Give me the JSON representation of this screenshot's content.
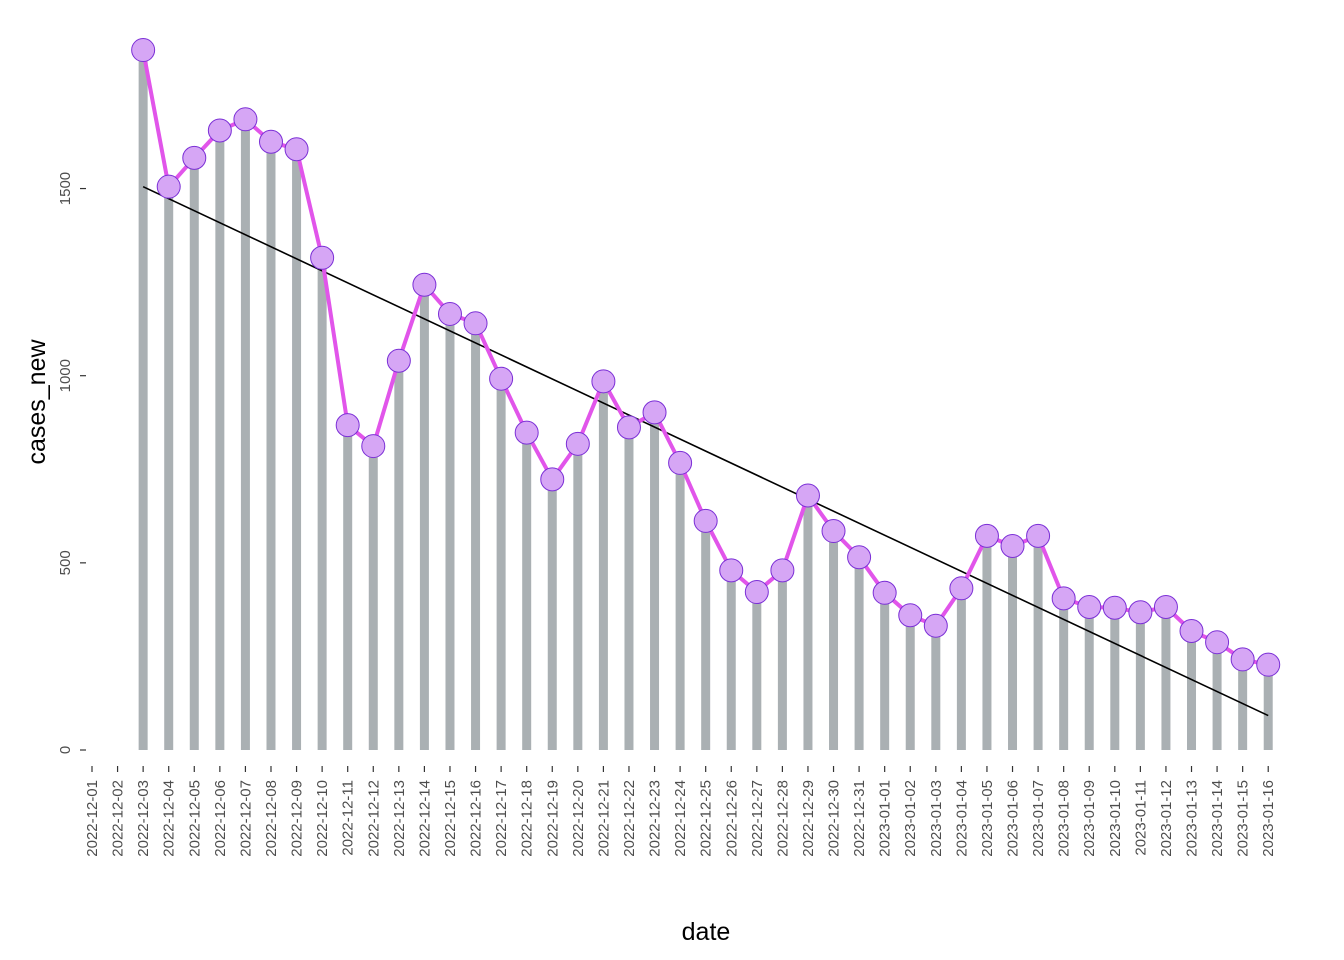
{
  "chart_data": {
    "type": "bar",
    "title": "",
    "xlabel": "date",
    "ylabel": "cases_new",
    "x_tick_labels": [
      "2022-12-01",
      "2022-12-02",
      "2022-12-03",
      "2022-12-04",
      "2022-12-05",
      "2022-12-06",
      "2022-12-07",
      "2022-12-08",
      "2022-12-09",
      "2022-12-10",
      "2022-12-11",
      "2022-12-12",
      "2022-12-13",
      "2022-12-14",
      "2022-12-15",
      "2022-12-16",
      "2022-12-17",
      "2022-12-18",
      "2022-12-19",
      "2022-12-20",
      "2022-12-21",
      "2022-12-22",
      "2022-12-23",
      "2022-12-24",
      "2022-12-25",
      "2022-12-26",
      "2022-12-27",
      "2022-12-28",
      "2022-12-29",
      "2022-12-30",
      "2022-12-31",
      "2023-01-01",
      "2023-01-02",
      "2023-01-03",
      "2023-01-04",
      "2023-01-05",
      "2023-01-06",
      "2023-01-07",
      "2023-01-08",
      "2023-01-09",
      "2023-01-10",
      "2023-01-11",
      "2023-01-12",
      "2023-01-13",
      "2023-01-14",
      "2023-01-15",
      "2023-01-16"
    ],
    "y_ticks": [
      0,
      500,
      1000,
      1500
    ],
    "y_tick_labels": [
      "0",
      "500",
      "1000",
      "1500"
    ],
    "xlim": [
      "2022-12-01",
      "2023-01-16"
    ],
    "ylim": [
      0,
      1870
    ],
    "grid": false,
    "series": [
      {
        "type": "bar+line",
        "x": [
          "2022-12-03",
          "2022-12-04",
          "2022-12-05",
          "2022-12-06",
          "2022-12-07",
          "2022-12-08",
          "2022-12-09",
          "2022-12-10",
          "2022-12-11",
          "2022-12-12",
          "2022-12-13",
          "2022-12-14",
          "2022-12-15",
          "2022-12-16",
          "2022-12-17",
          "2022-12-18",
          "2022-12-19",
          "2022-12-20",
          "2022-12-21",
          "2022-12-22",
          "2022-12-23",
          "2022-12-24",
          "2022-12-25",
          "2022-12-26",
          "2022-12-27",
          "2022-12-28",
          "2022-12-29",
          "2022-12-30",
          "2022-12-31",
          "2023-01-01",
          "2023-01-02",
          "2023-01-03",
          "2023-01-04",
          "2023-01-05",
          "2023-01-06",
          "2023-01-07",
          "2023-01-08",
          "2023-01-09",
          "2023-01-10",
          "2023-01-11",
          "2023-01-12",
          "2023-01-13",
          "2023-01-14",
          "2023-01-15",
          "2023-01-16"
        ],
        "values": [
          1870,
          1505,
          1582,
          1655,
          1685,
          1625,
          1605,
          1315,
          868,
          812,
          1040,
          1243,
          1165,
          1140,
          992,
          848,
          723,
          818,
          985,
          862,
          902,
          767,
          612,
          480,
          422,
          480,
          680,
          585,
          515,
          420,
          360,
          332,
          432,
          572,
          545,
          572,
          405,
          382,
          380,
          368,
          382,
          318,
          288,
          242,
          228
        ],
        "bar_color": "#aab0b3",
        "line_color": "#e155ea",
        "point_fill": "#d6a6f5",
        "point_stroke": "#7b2fd6"
      },
      {
        "type": "trend",
        "x": [
          "2022-12-03",
          "2023-01-16"
        ],
        "values": [
          1505,
          92
        ],
        "color": "#000000"
      }
    ]
  }
}
